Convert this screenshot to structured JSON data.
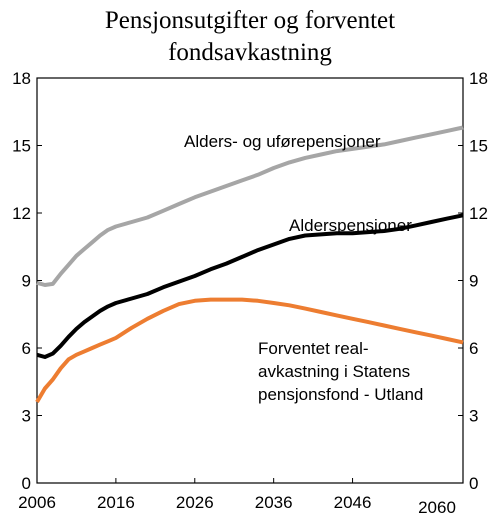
{
  "chart_data": {
    "type": "line",
    "title_lines": [
      "Pensjonsutgifter og forventet",
      "fondsavkastning"
    ],
    "xlabel": "",
    "ylabel": "",
    "xlim": [
      2006,
      2060
    ],
    "ylim": [
      0,
      18
    ],
    "x_ticks": [
      2006,
      2016,
      2026,
      2036,
      2046,
      2060
    ],
    "y_ticks": [
      0,
      3,
      6,
      9,
      12,
      15,
      18
    ],
    "y_tick_labels": [
      "0",
      "3",
      "6",
      "9",
      "12",
      "15",
      "18"
    ],
    "grid": false,
    "series": [
      {
        "name": "Alders- og uførepensjoner",
        "color": "#a6a6a6",
        "x": [
          2006,
          2007,
          2008,
          2009,
          2010,
          2011,
          2012,
          2013,
          2014,
          2015,
          2016,
          2018,
          2020,
          2022,
          2024,
          2026,
          2028,
          2030,
          2032,
          2034,
          2036,
          2038,
          2040,
          2042,
          2044,
          2046,
          2048,
          2050,
          2052,
          2054,
          2056,
          2058,
          2060
        ],
        "values": [
          8.9,
          8.8,
          8.85,
          9.3,
          9.7,
          10.1,
          10.4,
          10.7,
          11.0,
          11.25,
          11.4,
          11.6,
          11.8,
          12.1,
          12.4,
          12.7,
          12.95,
          13.2,
          13.45,
          13.7,
          14.0,
          14.25,
          14.45,
          14.6,
          14.75,
          14.85,
          14.95,
          15.05,
          15.2,
          15.35,
          15.5,
          15.65,
          15.8
        ]
      },
      {
        "name": "Alderspensjoner",
        "color": "#000000",
        "x": [
          2006,
          2007,
          2008,
          2009,
          2010,
          2011,
          2012,
          2013,
          2014,
          2015,
          2016,
          2018,
          2020,
          2022,
          2024,
          2026,
          2028,
          2030,
          2032,
          2034,
          2036,
          2038,
          2040,
          2042,
          2044,
          2046,
          2048,
          2050,
          2052,
          2054,
          2056,
          2058,
          2060
        ],
        "values": [
          5.7,
          5.6,
          5.75,
          6.1,
          6.5,
          6.85,
          7.15,
          7.4,
          7.65,
          7.85,
          8.0,
          8.2,
          8.4,
          8.7,
          8.95,
          9.2,
          9.5,
          9.75,
          10.05,
          10.35,
          10.6,
          10.85,
          11.0,
          11.05,
          11.1,
          11.1,
          11.15,
          11.2,
          11.3,
          11.45,
          11.6,
          11.75,
          11.9
        ]
      },
      {
        "name": "Forventet realavkastning i Statens pensjonsfond - Utland",
        "color": "#ed7d31",
        "x": [
          2006,
          2007,
          2008,
          2009,
          2010,
          2011,
          2012,
          2013,
          2014,
          2015,
          2016,
          2018,
          2020,
          2022,
          2024,
          2026,
          2028,
          2030,
          2032,
          2034,
          2036,
          2038,
          2040,
          2042,
          2044,
          2046,
          2048,
          2050,
          2052,
          2054,
          2056,
          2058,
          2060
        ],
        "values": [
          3.6,
          4.2,
          4.6,
          5.1,
          5.5,
          5.7,
          5.85,
          6.0,
          6.15,
          6.3,
          6.45,
          6.9,
          7.3,
          7.65,
          7.95,
          8.1,
          8.15,
          8.15,
          8.15,
          8.1,
          8.0,
          7.9,
          7.75,
          7.6,
          7.45,
          7.3,
          7.15,
          7.0,
          6.85,
          6.7,
          6.55,
          6.4,
          6.25
        ]
      }
    ],
    "annotations": [
      {
        "lines": [
          "Alders- og uførepensjoner"
        ]
      },
      {
        "lines": [
          "Alderspensjoner"
        ]
      },
      {
        "lines": [
          "Forventet real-",
          "avkastning i Statens",
          "pensjonsfond - Utland"
        ]
      }
    ]
  }
}
